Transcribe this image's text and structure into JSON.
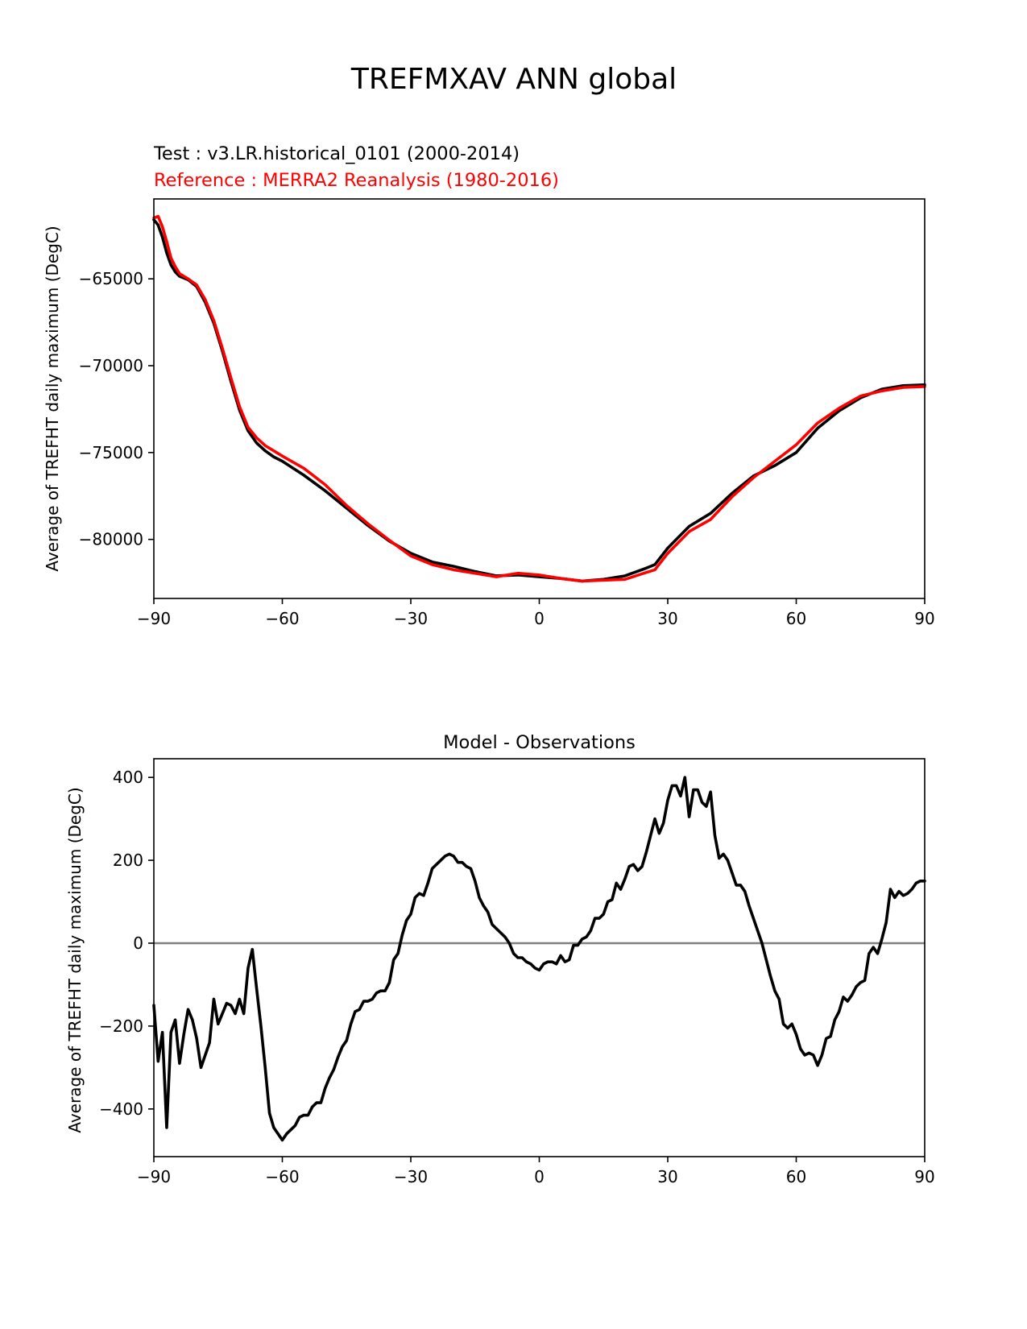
{
  "figure": {
    "suptitle": "TREFMXAV ANN global"
  },
  "chart_data": [
    {
      "type": "line",
      "test_label": "Test : v3.LR.historical_0101 (2000-2014)",
      "reference_label": "Reference : MERRA2 Reanalysis (1980-2016)",
      "title": "",
      "xlabel": "",
      "ylabel": "Average of TREFHT daily maximum (DegC)",
      "xlim": [
        -90,
        90
      ],
      "ylim": [
        -83400,
        -60400
      ],
      "xticks": [
        -90,
        -60,
        -30,
        0,
        30,
        60,
        90
      ],
      "xtick_labels": [
        "−90",
        "−60",
        "−30",
        "0",
        "30",
        "60",
        "90"
      ],
      "yticks": [
        -65000,
        -70000,
        -75000,
        -80000
      ],
      "ytick_labels": [
        "−65000",
        "−70000",
        "−75000",
        "−80000"
      ],
      "series": [
        {
          "name": "Test",
          "color": "#000000",
          "x": [
            -90,
            -89,
            -88,
            -87,
            -86,
            -85,
            -84,
            -82,
            -80,
            -78,
            -76,
            -74,
            -72,
            -70,
            -68,
            -66,
            -64,
            -62,
            -60,
            -55,
            -50,
            -45,
            -40,
            -35,
            -30,
            -25,
            -20,
            -15,
            -10,
            -5,
            0,
            5,
            10,
            15,
            20,
            25,
            27,
            30,
            35,
            40,
            45,
            50,
            55,
            60,
            65,
            70,
            75,
            80,
            85,
            90
          ],
          "y": [
            -61600,
            -61900,
            -62600,
            -63500,
            -64200,
            -64600,
            -64850,
            -65050,
            -65450,
            -66350,
            -67550,
            -69150,
            -70900,
            -72550,
            -73750,
            -74450,
            -74900,
            -75250,
            -75500,
            -76300,
            -77200,
            -78200,
            -79200,
            -80100,
            -80800,
            -81300,
            -81550,
            -81850,
            -82100,
            -82050,
            -82150,
            -82250,
            -82400,
            -82300,
            -82100,
            -81650,
            -81450,
            -80500,
            -79250,
            -78500,
            -77350,
            -76350,
            -75750,
            -75000,
            -73600,
            -72600,
            -71850,
            -71350,
            -71150,
            -71100
          ]
        },
        {
          "name": "Reference",
          "color": "#ff0000",
          "x": [
            -90,
            -89,
            -88,
            -87,
            -86,
            -85,
            -84,
            -82,
            -80,
            -78,
            -76,
            -74,
            -72,
            -70,
            -68,
            -66,
            -64,
            -62,
            -60,
            -55,
            -50,
            -45,
            -40,
            -35,
            -30,
            -25,
            -20,
            -15,
            -10,
            -5,
            0,
            5,
            10,
            15,
            20,
            25,
            27,
            30,
            35,
            40,
            45,
            50,
            55,
            60,
            65,
            70,
            75,
            80,
            85,
            90
          ],
          "y": [
            -61500,
            -61400,
            -62000,
            -62850,
            -63800,
            -64300,
            -64700,
            -65000,
            -65350,
            -66200,
            -67400,
            -69000,
            -70700,
            -72350,
            -73550,
            -74150,
            -74600,
            -74900,
            -75200,
            -75900,
            -76850,
            -78050,
            -79100,
            -80050,
            -80950,
            -81450,
            -81750,
            -81950,
            -82150,
            -81950,
            -82050,
            -82250,
            -82400,
            -82350,
            -82300,
            -81900,
            -81750,
            -80800,
            -79550,
            -78850,
            -77550,
            -76450,
            -75500,
            -74550,
            -73300,
            -72450,
            -71750,
            -71450,
            -71250,
            -71200
          ]
        }
      ]
    },
    {
      "type": "line",
      "title": "Model - Observations",
      "xlabel": "",
      "ylabel": "Average of TREFHT daily maximum (DegC)",
      "xlim": [
        -90,
        90
      ],
      "ylim": [
        -515,
        445
      ],
      "xticks": [
        -90,
        -60,
        -30,
        0,
        30,
        60,
        90
      ],
      "xtick_labels": [
        "−90",
        "−60",
        "−30",
        "0",
        "30",
        "60",
        "90"
      ],
      "yticks": [
        400,
        200,
        0,
        -200,
        -400
      ],
      "ytick_labels": [
        "400",
        "200",
        "0",
        "−200",
        "−400"
      ],
      "zero_line": {
        "value": 0,
        "color": "#808080"
      },
      "series": [
        {
          "name": "Model - Observations",
          "color": "#000000",
          "x": [
            -90,
            -89,
            -88,
            -87,
            -86,
            -85,
            -84,
            -83,
            -82,
            -81,
            -80,
            -79,
            -78,
            -77,
            -76,
            -75,
            -74,
            -73,
            -72,
            -71,
            -70,
            -69,
            -68,
            -67,
            -66,
            -65,
            -64,
            -63,
            -62,
            -61,
            -60,
            -59,
            -58,
            -57,
            -56,
            -55,
            -54,
            -53,
            -52,
            -51,
            -50,
            -49,
            -48,
            -47,
            -46,
            -45,
            -44,
            -43,
            -42,
            -41,
            -40,
            -39,
            -38,
            -37,
            -36,
            -35,
            -34,
            -33,
            -32,
            -31,
            -30,
            -29,
            -28,
            -27,
            -26,
            -25,
            -24,
            -23,
            -22,
            -21,
            -20,
            -19,
            -18,
            -17,
            -16,
            -15,
            -14,
            -13,
            -12,
            -11,
            -10,
            -9,
            -8,
            -7,
            -6,
            -5,
            -4,
            -3,
            -2,
            -1,
            0,
            1,
            2,
            3,
            4,
            5,
            6,
            7,
            8,
            9,
            10,
            11,
            12,
            13,
            14,
            15,
            16,
            17,
            18,
            19,
            20,
            21,
            22,
            23,
            24,
            25,
            26,
            27,
            28,
            29,
            30,
            31,
            32,
            33,
            34,
            35,
            36,
            37,
            38,
            39,
            40,
            41,
            42,
            43,
            44,
            45,
            46,
            47,
            48,
            49,
            50,
            51,
            52,
            53,
            54,
            55,
            56,
            57,
            58,
            59,
            60,
            61,
            62,
            63,
            64,
            65,
            66,
            67,
            68,
            69,
            70,
            71,
            72,
            73,
            74,
            75,
            76,
            77,
            78,
            79,
            80,
            81,
            82,
            83,
            84,
            85,
            86,
            87,
            88,
            89,
            90
          ],
          "y": [
            -150,
            -285,
            -215,
            -445,
            -215,
            -185,
            -290,
            -220,
            -160,
            -185,
            -230,
            -300,
            -270,
            -240,
            -135,
            -195,
            -170,
            -145,
            -150,
            -170,
            -135,
            -170,
            -60,
            -15,
            -110,
            -200,
            -300,
            -410,
            -445,
            -460,
            -475,
            -460,
            -450,
            -440,
            -420,
            -415,
            -415,
            -395,
            -385,
            -385,
            -350,
            -325,
            -305,
            -275,
            -250,
            -235,
            -195,
            -165,
            -160,
            -140,
            -140,
            -135,
            -120,
            -115,
            -115,
            -95,
            -40,
            -25,
            20,
            55,
            70,
            110,
            120,
            115,
            145,
            180,
            190,
            200,
            210,
            215,
            210,
            195,
            195,
            185,
            180,
            150,
            110,
            90,
            75,
            45,
            35,
            25,
            15,
            0,
            -25,
            -35,
            -35,
            -45,
            -50,
            -60,
            -65,
            -50,
            -45,
            -45,
            -50,
            -30,
            -45,
            -40,
            -5,
            -5,
            10,
            15,
            30,
            60,
            60,
            70,
            100,
            105,
            145,
            130,
            155,
            185,
            190,
            175,
            185,
            220,
            260,
            300,
            265,
            290,
            345,
            380,
            380,
            355,
            400,
            305,
            370,
            370,
            340,
            330,
            365,
            260,
            205,
            215,
            200,
            170,
            140,
            140,
            125,
            90,
            60,
            30,
            0,
            -40,
            -80,
            -115,
            -135,
            -195,
            -205,
            -195,
            -220,
            -255,
            -270,
            -265,
            -270,
            -295,
            -270,
            -230,
            -225,
            -185,
            -165,
            -130,
            -140,
            -125,
            -105,
            -95,
            -90,
            -25,
            -10,
            -25,
            10,
            50,
            130,
            110,
            125,
            115,
            120,
            130,
            145,
            150,
            150
          ]
        }
      ]
    }
  ]
}
